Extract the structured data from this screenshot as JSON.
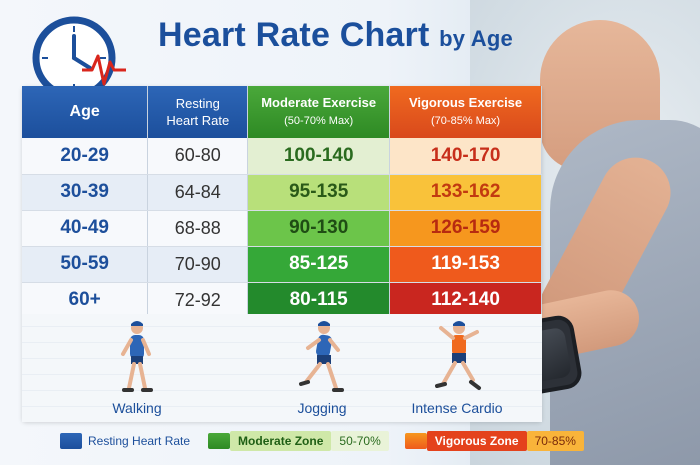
{
  "title": {
    "main": "Heart Rate Chart",
    "suffix": "by Age"
  },
  "table": {
    "headers": {
      "age": "Age",
      "resting_l1": "Resting",
      "resting_l2": "Heart Rate",
      "moderate": "Moderate Exercise",
      "moderate_sub": "(50-70% Max)",
      "vigorous": "Vigorous Exercise",
      "vigorous_sub": "(70-85% Max)"
    },
    "rows": [
      {
        "age": "20-29",
        "resting": "60-80",
        "moderate": "100-140",
        "vigorous": "140-170"
      },
      {
        "age": "30-39",
        "resting": "64-84",
        "moderate": "95-135",
        "vigorous": "133-162"
      },
      {
        "age": "40-49",
        "resting": "68-88",
        "moderate": "90-130",
        "vigorous": "126-159"
      },
      {
        "age": "50-59",
        "resting": "70-90",
        "moderate": "85-125",
        "vigorous": "119-153"
      },
      {
        "age": "60+",
        "resting": "72-92",
        "moderate": "80-115",
        "vigorous": "112-140"
      }
    ]
  },
  "activities": [
    {
      "label": "Walking",
      "icon": "walking-figure-icon"
    },
    {
      "label": "Jogging",
      "icon": "jogging-figure-icon"
    },
    {
      "label": "Intense Cardio",
      "icon": "cardio-figure-icon"
    }
  ],
  "legend": {
    "resting": "Resting Heart Rate",
    "moderate": "Moderate Zone",
    "moderate_pct": "50-70%",
    "vigorous": "Vigorous Zone",
    "vigorous_pct": "70-85%"
  },
  "colors": {
    "brand_blue": "#1b4f9c",
    "moderate_cells": [
      "#e3efd2",
      "#b8e07a",
      "#6cc54a",
      "#35a838",
      "#238a2c"
    ],
    "vigorous_cells": [
      "#fde5c8",
      "#f9c23a",
      "#f6971e",
      "#ef5a1c",
      "#c9261f"
    ],
    "moderate_text": [
      "#2a6b1f",
      "#2a5a18",
      "#1f4d14",
      "#ffffff",
      "#ffffff"
    ],
    "vigorous_text": [
      "#c72e1a",
      "#c23a10",
      "#b72a10",
      "#ffffff",
      "#ffffff"
    ]
  }
}
